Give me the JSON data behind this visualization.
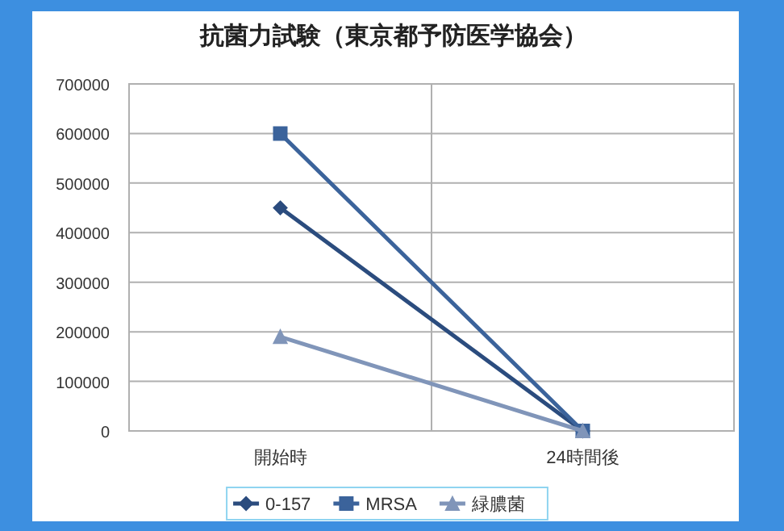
{
  "chart_data": {
    "type": "line",
    "title": "抗菌力試験（東京都予防医学協会）",
    "categories": [
      "開始時",
      "24時間後"
    ],
    "series": [
      {
        "name": "0-157",
        "color": "#2b4c7e",
        "values": [
          450000,
          0
        ],
        "marker": "diamond"
      },
      {
        "name": "MRSA",
        "color": "#3b639b",
        "values": [
          600000,
          0
        ],
        "marker": "square"
      },
      {
        "name": "緑膿菌",
        "color": "#8095b9",
        "values": [
          190000,
          0
        ],
        "marker": "triangle"
      }
    ],
    "ylim": [
      0,
      700000
    ],
    "yticks": [
      0,
      100000,
      200000,
      300000,
      400000,
      500000,
      600000,
      700000
    ],
    "grid": true,
    "legend": "bottom",
    "line_style": "solid"
  }
}
